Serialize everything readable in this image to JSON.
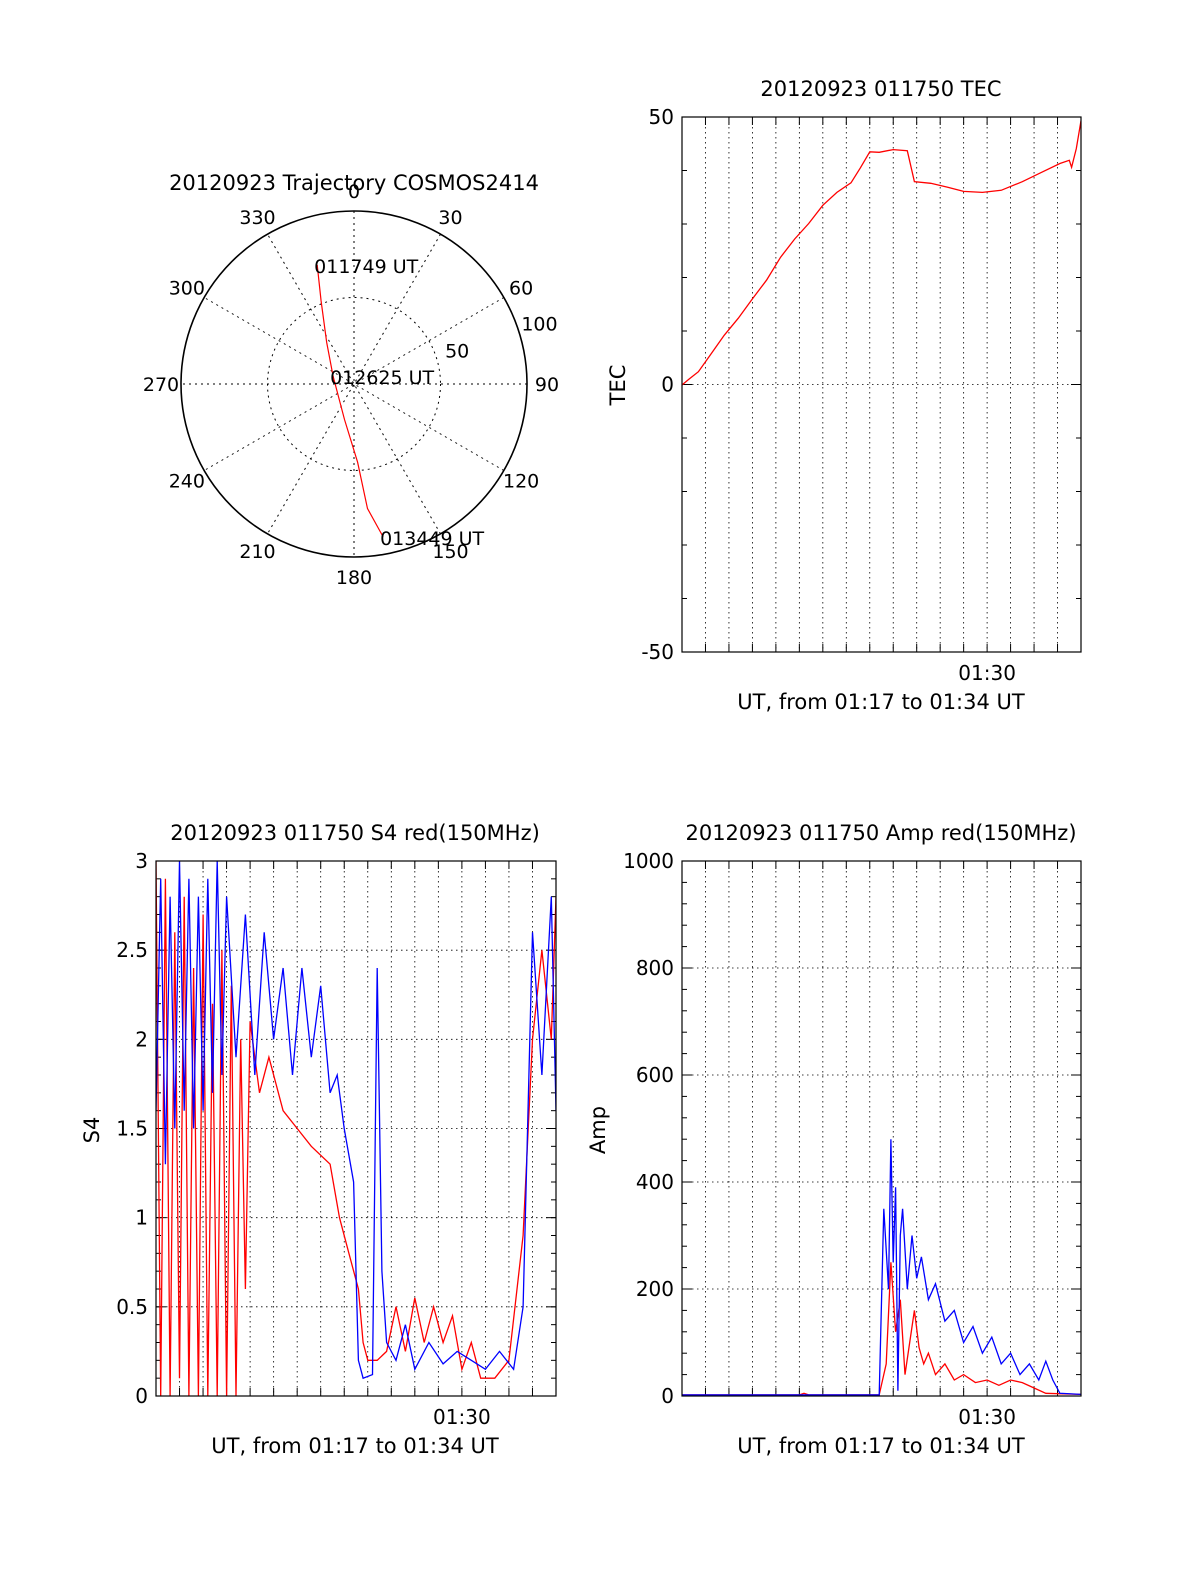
{
  "chart_data": [
    {
      "id": "trajectory",
      "type": "polar",
      "title": "20120923 Trajectory COSMOS2414",
      "angle_labels": [
        {
          "angle": 0,
          "text": "0"
        },
        {
          "angle": 30,
          "text": "30"
        },
        {
          "angle": 60,
          "text": "60"
        },
        {
          "angle": 90,
          "text": "90"
        },
        {
          "angle": 120,
          "text": "120"
        },
        {
          "angle": 150,
          "text": "150"
        },
        {
          "angle": 180,
          "text": "180"
        },
        {
          "angle": 210,
          "text": "210"
        },
        {
          "angle": 240,
          "text": "240"
        },
        {
          "angle": 270,
          "text": "270"
        },
        {
          "angle": 300,
          "text": "300"
        },
        {
          "angle": 330,
          "text": "330"
        }
      ],
      "radial_labels": [
        {
          "r": 50,
          "text": "50"
        },
        {
          "r": 100,
          "text": "100"
        }
      ],
      "rmax": 100,
      "grid": true,
      "trajectory": {
        "color": "#ff0000",
        "points": [
          [
            -21.3,
            68.9
          ],
          [
            -19.0,
            48.0
          ],
          [
            -15.8,
            24.0
          ],
          [
            -12.1,
            4.5
          ],
          [
            -5.5,
            -20.5
          ],
          [
            2.1,
            -45.2
          ],
          [
            7.8,
            -72.0
          ],
          [
            16.8,
            -88.3
          ]
        ]
      },
      "annotations": [
        {
          "text": "011749 UT",
          "x": -21.3,
          "y": 68.9
        },
        {
          "text": "012625 UT",
          "x": -12.1,
          "y": 4.5
        },
        {
          "text": "013449 UT",
          "x": 16.8,
          "y": -88.3
        }
      ]
    },
    {
      "id": "tec",
      "type": "line",
      "title": "20120923 011750 TEC",
      "xlabel": "UT, from 01:17 to 01:34 UT",
      "ylabel": "TEC",
      "xlim": [
        0,
        17
      ],
      "ylim": [
        -50,
        50
      ],
      "yticks": [
        {
          "value": -50,
          "label": "-50"
        },
        {
          "value": 0,
          "label": "0"
        },
        {
          "value": 50,
          "label": "50"
        }
      ],
      "xticks": [
        {
          "value": 13,
          "label": "01:30"
        }
      ],
      "grid": true,
      "series": [
        {
          "color": "#ff0000",
          "points": [
            [
              0.0,
              -0.1
            ],
            [
              0.3,
              1.0
            ],
            [
              0.7,
              2.4
            ],
            [
              1.2,
              5.5
            ],
            [
              1.8,
              9.2
            ],
            [
              2.4,
              12.4
            ],
            [
              3.0,
              16.0
            ],
            [
              3.6,
              19.5
            ],
            [
              4.2,
              23.8
            ],
            [
              4.8,
              27.2
            ],
            [
              5.4,
              30.1
            ],
            [
              6.0,
              33.5
            ],
            [
              6.6,
              35.9
            ],
            [
              7.2,
              37.7
            ],
            [
              7.6,
              40.5
            ],
            [
              8.0,
              43.5
            ],
            [
              8.4,
              43.4
            ],
            [
              9.0,
              43.9
            ],
            [
              9.6,
              43.7
            ],
            [
              9.9,
              37.9
            ],
            [
              10.6,
              37.6
            ],
            [
              11.3,
              36.9
            ],
            [
              12.0,
              36.1
            ],
            [
              12.8,
              35.9
            ],
            [
              13.6,
              36.3
            ],
            [
              14.5,
              37.9
            ],
            [
              15.3,
              39.6
            ],
            [
              16.1,
              41.3
            ],
            [
              16.5,
              41.9
            ],
            [
              16.6,
              40.6
            ],
            [
              16.8,
              44.1
            ],
            [
              17.0,
              49.3
            ]
          ]
        }
      ]
    },
    {
      "id": "s4",
      "type": "line",
      "title": "20120923 011750 S4 red(150MHz)",
      "xlabel": "UT, from 01:17 to 01:34 UT",
      "ylabel": "S4",
      "xlim": [
        0,
        17
      ],
      "ylim": [
        0,
        3
      ],
      "yticks": [
        {
          "value": 0,
          "label": "0"
        },
        {
          "value": 0.5,
          "label": "0.5"
        },
        {
          "value": 1,
          "label": "1"
        },
        {
          "value": 1.5,
          "label": "1.5"
        },
        {
          "value": 2,
          "label": "2"
        },
        {
          "value": 2.5,
          "label": "2.5"
        },
        {
          "value": 3,
          "label": "3"
        }
      ],
      "xticks": [
        {
          "value": 13,
          "label": "01:30"
        }
      ],
      "grid": true,
      "series": [
        {
          "color": "#ff0000",
          "points": [
            [
              0.0,
              3.0
            ],
            [
              0.2,
              0.0
            ],
            [
              0.4,
              2.9
            ],
            [
              0.6,
              0.0
            ],
            [
              0.8,
              2.6
            ],
            [
              1.0,
              0.1
            ],
            [
              1.2,
              2.8
            ],
            [
              1.4,
              0.0
            ],
            [
              1.6,
              2.4
            ],
            [
              1.8,
              0.0
            ],
            [
              2.0,
              2.7
            ],
            [
              2.2,
              0.0
            ],
            [
              2.4,
              2.2
            ],
            [
              2.6,
              0.0
            ],
            [
              2.8,
              2.5
            ],
            [
              3.0,
              0.0
            ],
            [
              3.2,
              2.3
            ],
            [
              3.4,
              0.0
            ],
            [
              3.6,
              2.0
            ],
            [
              3.8,
              0.6
            ],
            [
              4.0,
              2.1
            ],
            [
              4.4,
              1.7
            ],
            [
              4.8,
              1.9
            ],
            [
              5.4,
              1.6
            ],
            [
              6.0,
              1.5
            ],
            [
              6.6,
              1.4
            ],
            [
              7.4,
              1.3
            ],
            [
              7.8,
              1.0
            ],
            [
              8.2,
              0.8
            ],
            [
              8.6,
              0.6
            ],
            [
              8.8,
              0.3
            ],
            [
              9.0,
              0.2
            ],
            [
              9.4,
              0.2
            ],
            [
              9.8,
              0.25
            ],
            [
              10.2,
              0.5
            ],
            [
              10.6,
              0.25
            ],
            [
              11.0,
              0.55
            ],
            [
              11.4,
              0.3
            ],
            [
              11.8,
              0.5
            ],
            [
              12.2,
              0.3
            ],
            [
              12.6,
              0.45
            ],
            [
              13.0,
              0.15
            ],
            [
              13.4,
              0.3
            ],
            [
              13.8,
              0.1
            ],
            [
              14.4,
              0.1
            ],
            [
              15.0,
              0.2
            ],
            [
              15.6,
              0.9
            ],
            [
              16.0,
              2.0
            ],
            [
              16.4,
              2.5
            ],
            [
              16.8,
              2.0
            ],
            [
              17.0,
              2.8
            ]
          ]
        },
        {
          "color": "#0000ff",
          "points": [
            [
              0.0,
              1.6
            ],
            [
              0.2,
              2.9
            ],
            [
              0.4,
              1.3
            ],
            [
              0.6,
              2.8
            ],
            [
              0.8,
              1.5
            ],
            [
              1.0,
              3.0
            ],
            [
              1.2,
              1.6
            ],
            [
              1.4,
              2.9
            ],
            [
              1.6,
              1.5
            ],
            [
              1.8,
              2.8
            ],
            [
              2.0,
              1.6
            ],
            [
              2.2,
              2.9
            ],
            [
              2.4,
              1.7
            ],
            [
              2.6,
              3.0
            ],
            [
              2.8,
              1.8
            ],
            [
              3.0,
              2.8
            ],
            [
              3.4,
              1.9
            ],
            [
              3.8,
              2.7
            ],
            [
              4.2,
              1.8
            ],
            [
              4.6,
              2.6
            ],
            [
              5.0,
              2.0
            ],
            [
              5.4,
              2.4
            ],
            [
              5.8,
              1.8
            ],
            [
              6.2,
              2.4
            ],
            [
              6.6,
              1.9
            ],
            [
              7.0,
              2.3
            ],
            [
              7.4,
              1.7
            ],
            [
              7.7,
              1.8
            ],
            [
              8.0,
              1.5
            ],
            [
              8.4,
              1.2
            ],
            [
              8.6,
              0.2
            ],
            [
              8.8,
              0.1
            ],
            [
              9.2,
              0.12
            ],
            [
              9.4,
              2.4
            ],
            [
              9.6,
              0.7
            ],
            [
              9.8,
              0.3
            ],
            [
              10.2,
              0.2
            ],
            [
              10.6,
              0.4
            ],
            [
              11.0,
              0.15
            ],
            [
              11.6,
              0.3
            ],
            [
              12.2,
              0.18
            ],
            [
              12.8,
              0.25
            ],
            [
              13.4,
              0.2
            ],
            [
              14.0,
              0.15
            ],
            [
              14.6,
              0.25
            ],
            [
              15.2,
              0.15
            ],
            [
              15.6,
              0.5
            ],
            [
              16.0,
              2.6
            ],
            [
              16.4,
              1.8
            ],
            [
              16.8,
              2.8
            ],
            [
              17.0,
              1.6
            ]
          ]
        }
      ]
    },
    {
      "id": "amp",
      "type": "line",
      "title": "20120923 011750 Amp red(150MHz)",
      "xlabel": "UT, from 01:17 to 01:34 UT",
      "ylabel": "Amp",
      "xlim": [
        0,
        17
      ],
      "ylim": [
        0,
        1000
      ],
      "yticks": [
        {
          "value": 0,
          "label": "0"
        },
        {
          "value": 200,
          "label": "200"
        },
        {
          "value": 400,
          "label": "400"
        },
        {
          "value": 600,
          "label": "600"
        },
        {
          "value": 800,
          "label": "800"
        },
        {
          "value": 1000,
          "label": "1000"
        }
      ],
      "xticks": [
        {
          "value": 13,
          "label": "01:30"
        }
      ],
      "grid": true,
      "series": [
        {
          "color": "#ff0000",
          "points": [
            [
              0.0,
              2
            ],
            [
              5.0,
              2
            ],
            [
              5.2,
              5
            ],
            [
              5.4,
              2
            ],
            [
              8.4,
              2
            ],
            [
              8.7,
              60
            ],
            [
              8.9,
              250
            ],
            [
              9.1,
              120
            ],
            [
              9.3,
              180
            ],
            [
              9.5,
              40
            ],
            [
              9.7,
              100
            ],
            [
              9.9,
              160
            ],
            [
              10.1,
              90
            ],
            [
              10.3,
              60
            ],
            [
              10.5,
              80
            ],
            [
              10.8,
              40
            ],
            [
              11.2,
              60
            ],
            [
              11.6,
              30
            ],
            [
              12.0,
              40
            ],
            [
              12.5,
              25
            ],
            [
              13.0,
              30
            ],
            [
              13.5,
              20
            ],
            [
              14.0,
              30
            ],
            [
              14.5,
              25
            ],
            [
              15.0,
              15
            ],
            [
              15.5,
              5
            ],
            [
              17.0,
              3
            ]
          ]
        },
        {
          "color": "#0000ff",
          "points": [
            [
              0.0,
              2
            ],
            [
              8.4,
              2
            ],
            [
              8.6,
              350
            ],
            [
              8.8,
              200
            ],
            [
              8.9,
              480
            ],
            [
              9.0,
              250
            ],
            [
              9.1,
              390
            ],
            [
              9.2,
              10
            ],
            [
              9.3,
              300
            ],
            [
              9.4,
              350
            ],
            [
              9.6,
              200
            ],
            [
              9.8,
              300
            ],
            [
              10.0,
              220
            ],
            [
              10.2,
              260
            ],
            [
              10.5,
              180
            ],
            [
              10.8,
              210
            ],
            [
              11.2,
              140
            ],
            [
              11.6,
              160
            ],
            [
              12.0,
              100
            ],
            [
              12.4,
              130
            ],
            [
              12.8,
              80
            ],
            [
              13.2,
              110
            ],
            [
              13.6,
              60
            ],
            [
              14.0,
              80
            ],
            [
              14.4,
              40
            ],
            [
              14.8,
              60
            ],
            [
              15.2,
              30
            ],
            [
              15.5,
              65
            ],
            [
              15.8,
              30
            ],
            [
              16.1,
              5
            ],
            [
              17.0,
              3
            ]
          ]
        }
      ]
    }
  ]
}
